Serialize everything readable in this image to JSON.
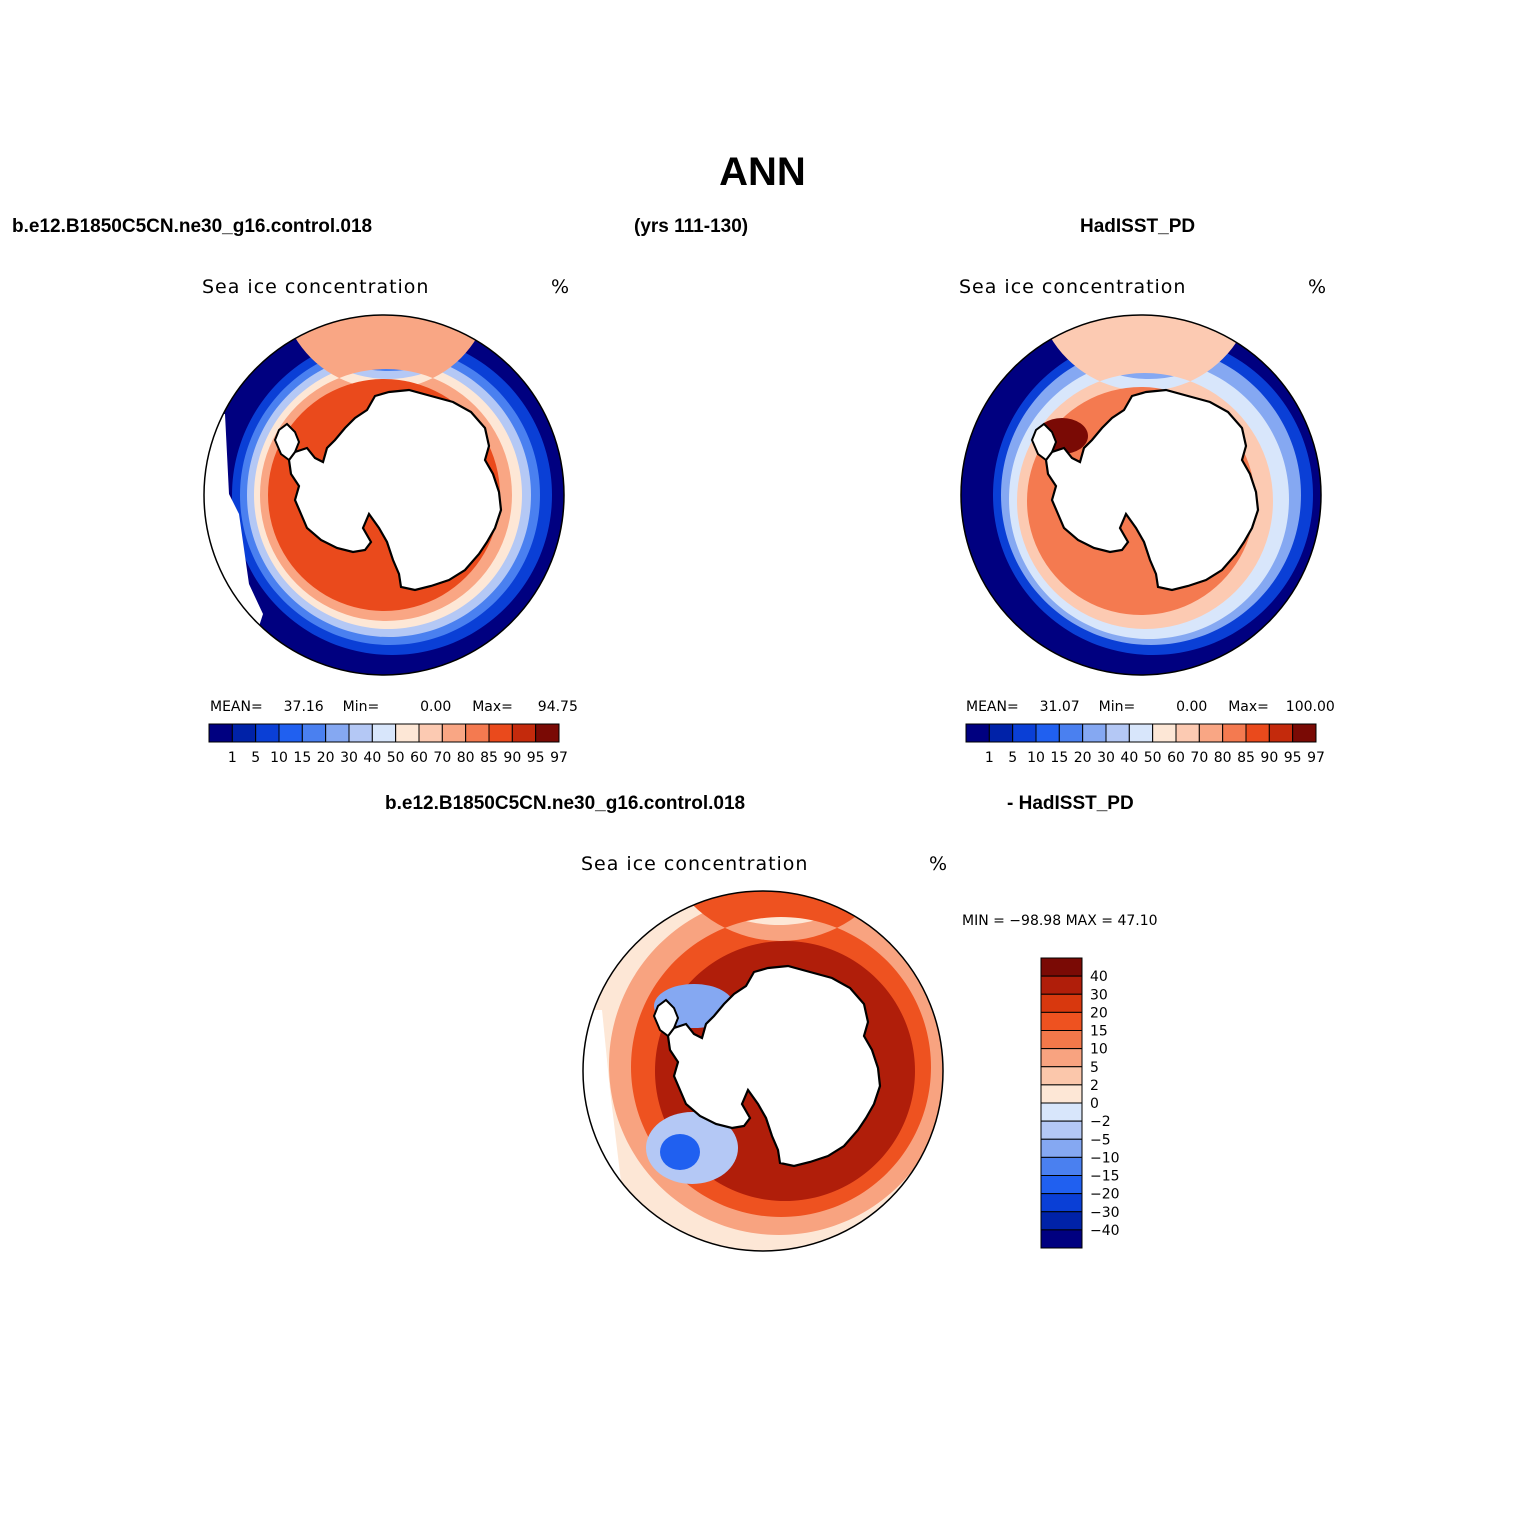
{
  "figure": {
    "title": "ANN",
    "case_name": "b.e12.B1850C5CN.ne30_g16.control.018",
    "years": "(yrs 111-130)",
    "obs_name": "HadISST_PD",
    "diff_case": "b.e12.B1850C5CN.ne30_g16.control.018",
    "diff_obs": "- HadISST_PD"
  },
  "panels": [
    {
      "id": "model",
      "title": "Sea ice concentration",
      "units": "%",
      "stats": {
        "mean_label": "MEAN=",
        "mean": "37.16",
        "min_label": "Min=",
        "min": "0.00",
        "max_label": "Max=",
        "max": "94.75"
      }
    },
    {
      "id": "obs",
      "title": "Sea ice concentration",
      "units": "%",
      "stats": {
        "mean_label": "MEAN=",
        "mean": "31.07",
        "min_label": "Min=",
        "min": "0.00",
        "max_label": "Max=",
        "max": "100.00"
      }
    },
    {
      "id": "diff",
      "title": "Sea ice concentration",
      "units": "%",
      "stats": {
        "minmax": "MIN = −98.98 MAX =   47.10"
      }
    }
  ],
  "colorbars": {
    "concentration": {
      "levels": [
        "1",
        "5",
        "10",
        "15",
        "20",
        "30",
        "40",
        "50",
        "60",
        "70",
        "80",
        "85",
        "90",
        "95",
        "97"
      ],
      "colors": [
        "#000080",
        "#0022a8",
        "#0a3fd6",
        "#2060f0",
        "#4a80f0",
        "#85a8f2",
        "#b4c8f5",
        "#d8e6fb",
        "#fde7d6",
        "#fccab2",
        "#f9a684",
        "#f47a50",
        "#ea4a1c",
        "#c42a0c",
        "#7a0a05"
      ]
    },
    "difference": {
      "levels": [
        "40",
        "30",
        "20",
        "15",
        "10",
        "5",
        "2",
        "0",
        "−2",
        "−5",
        "−10",
        "−15",
        "−20",
        "−30",
        "−40"
      ],
      "colors": [
        "#7a0a05",
        "#b01e0a",
        "#d8380e",
        "#ee5220",
        "#f3784a",
        "#f8a380",
        "#fbc7ab",
        "#fde7d6",
        "#d8e6fb",
        "#b4c8f5",
        "#85a8f2",
        "#4a80f0",
        "#2060f0",
        "#0a3fd6",
        "#0022a8",
        "#000080"
      ]
    }
  },
  "map_colors": {
    "ocean_blue": "#000080",
    "land": "#ffffff",
    "coast": "#000000"
  }
}
